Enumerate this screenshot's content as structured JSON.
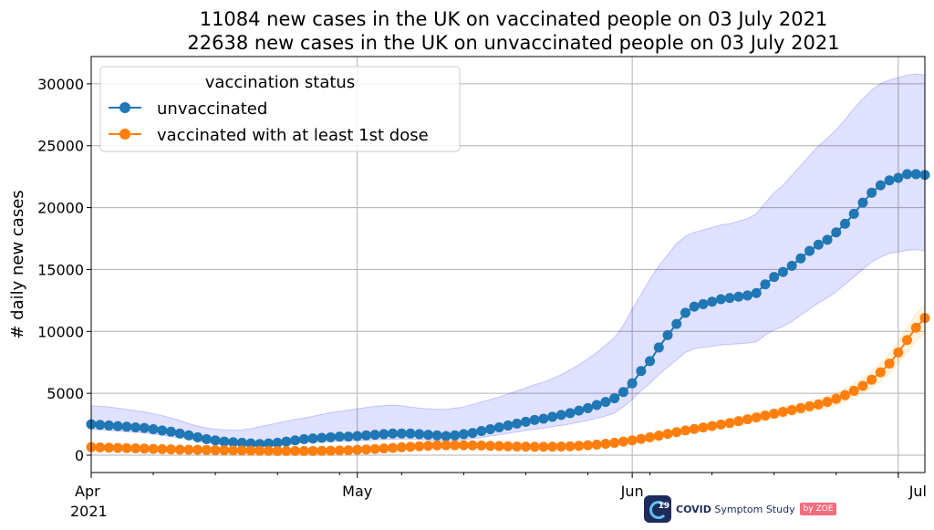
{
  "chart_data": {
    "type": "line",
    "title": "11084 new cases in the UK on vaccinated people on 03 July 2021",
    "subtitle": "22638 new cases in the UK on unvaccinated people on 03 July 2021",
    "xlabel": "",
    "ylabel": "# daily new cases",
    "x_start": "2021-04-01",
    "x_end": "2021-07-03",
    "xlim": [
      "2021-04-01",
      "2021-07-04"
    ],
    "ylim": [
      -1400,
      32200
    ],
    "yticks": [
      0,
      5000,
      10000,
      15000,
      20000,
      25000,
      30000
    ],
    "xticks": [
      {
        "date": "2021-04-01",
        "label": "Apr",
        "sublabel": "2021"
      },
      {
        "date": "2021-05-01",
        "label": "May",
        "sublabel": ""
      },
      {
        "date": "2021-06-01",
        "label": "Jun",
        "sublabel": ""
      },
      {
        "date": "2021-07-01",
        "label": "Jul",
        "sublabel": ""
      }
    ],
    "grid": true,
    "legend": {
      "title": "vaccination status",
      "position": "upper-left"
    },
    "series": [
      {
        "name": "unvaccinated",
        "color": "#1f77b4",
        "band_color": "#0000ff",
        "values": [
          2500,
          2450,
          2400,
          2350,
          2300,
          2250,
          2200,
          2100,
          2000,
          1900,
          1750,
          1600,
          1450,
          1300,
          1200,
          1100,
          1050,
          1000,
          950,
          900,
          950,
          1000,
          1100,
          1200,
          1300,
          1350,
          1400,
          1450,
          1500,
          1500,
          1550,
          1600,
          1650,
          1700,
          1750,
          1750,
          1750,
          1700,
          1650,
          1600,
          1550,
          1600,
          1700,
          1800,
          1950,
          2100,
          2250,
          2400,
          2550,
          2700,
          2850,
          2950,
          3100,
          3250,
          3400,
          3600,
          3800,
          4050,
          4300,
          4600,
          5100,
          5800,
          6800,
          7600,
          8700,
          9700,
          10600,
          11500,
          12000,
          12200,
          12400,
          12600,
          12700,
          12800,
          12900,
          13100,
          13800,
          14400,
          14800,
          15300,
          15900,
          16500,
          17000,
          17400,
          18000,
          18700,
          19500,
          20400,
          21200,
          21800,
          22200,
          22400,
          22700,
          22700,
          22638
        ],
        "lower": [
          2100,
          2050,
          2000,
          1950,
          1900,
          1850,
          1800,
          1700,
          1600,
          1500,
          1400,
          1300,
          1150,
          1000,
          900,
          820,
          780,
          740,
          700,
          660,
          700,
          760,
          840,
          930,
          1000,
          1050,
          1080,
          1100,
          1130,
          1150,
          1180,
          1200,
          1230,
          1260,
          1290,
          1300,
          1300,
          1260,
          1220,
          1180,
          1150,
          1180,
          1250,
          1330,
          1430,
          1550,
          1660,
          1770,
          1880,
          1990,
          2100,
          2180,
          2290,
          2400,
          2520,
          2660,
          2800,
          2980,
          3170,
          3400,
          3900,
          4500,
          5200,
          5800,
          6500,
          7100,
          7700,
          8300,
          8600,
          8700,
          8800,
          8900,
          8950,
          9000,
          9050,
          9150,
          9700,
          10100,
          10400,
          10800,
          11300,
          11800,
          12300,
          12700,
          13200,
          13800,
          14400,
          15000,
          15600,
          16000,
          16300,
          16400,
          16550,
          16600,
          16500
        ],
        "upper": [
          4000,
          3950,
          3900,
          3800,
          3700,
          3600,
          3500,
          3350,
          3200,
          3000,
          2800,
          2550,
          2350,
          2200,
          2100,
          2050,
          2020,
          2050,
          2150,
          2300,
          2450,
          2600,
          2750,
          2900,
          3000,
          3150,
          3300,
          3450,
          3550,
          3650,
          3750,
          3850,
          3950,
          4000,
          4050,
          4000,
          3900,
          3800,
          3750,
          3700,
          3700,
          3800,
          3900,
          4100,
          4300,
          4500,
          4700,
          4950,
          5200,
          5450,
          5700,
          5900,
          6200,
          6500,
          6900,
          7300,
          7800,
          8300,
          8900,
          9500,
          10500,
          11800,
          13000,
          14200,
          15300,
          16200,
          17100,
          17700,
          18000,
          18200,
          18400,
          18600,
          18700,
          18900,
          19100,
          19500,
          20400,
          21200,
          21800,
          22600,
          23400,
          24200,
          25000,
          25600,
          26300,
          27100,
          28000,
          28800,
          29500,
          30000,
          30300,
          30500,
          30700,
          30800,
          30700
        ]
      },
      {
        "name": "vaccinated with at least 1st dose",
        "color": "#ff7f0e",
        "band_color": "#ffa500",
        "values": [
          650,
          630,
          610,
          590,
          570,
          550,
          530,
          510,
          490,
          470,
          450,
          440,
          430,
          420,
          410,
          400,
          390,
          380,
          370,
          360,
          350,
          345,
          340,
          340,
          340,
          345,
          350,
          360,
          380,
          400,
          430,
          460,
          500,
          540,
          590,
          640,
          680,
          720,
          760,
          790,
          800,
          800,
          800,
          790,
          780,
          760,
          740,
          720,
          700,
          690,
          680,
          680,
          690,
          700,
          720,
          760,
          800,
          860,
          920,
          1000,
          1100,
          1200,
          1320,
          1450,
          1580,
          1720,
          1860,
          2000,
          2120,
          2240,
          2360,
          2480,
          2600,
          2750,
          2900,
          3050,
          3200,
          3350,
          3500,
          3650,
          3800,
          3950,
          4100,
          4300,
          4550,
          4850,
          5200,
          5600,
          6100,
          6700,
          7400,
          8300,
          9300,
          10300,
          11084
        ],
        "lower": [
          520,
          505,
          490,
          470,
          455,
          440,
          425,
          410,
          395,
          380,
          365,
          355,
          345,
          335,
          325,
          315,
          305,
          295,
          285,
          275,
          265,
          260,
          255,
          255,
          255,
          260,
          265,
          275,
          295,
          315,
          340,
          365,
          400,
          435,
          475,
          515,
          550,
          585,
          620,
          645,
          655,
          655,
          655,
          645,
          635,
          620,
          605,
          590,
          575,
          565,
          555,
          555,
          565,
          575,
          590,
          625,
          660,
          710,
          760,
          830,
          920,
          1010,
          1120,
          1240,
          1360,
          1490,
          1610,
          1740,
          1840,
          1950,
          2060,
          2170,
          2280,
          2420,
          2550,
          2690,
          2830,
          2970,
          3100,
          3240,
          3380,
          3510,
          3650,
          3830,
          4050,
          4320,
          4640,
          5000,
          5450,
          5980,
          6600,
          7400,
          8300,
          9200,
          9900
        ],
        "upper": [
          780,
          755,
          730,
          710,
          685,
          660,
          635,
          610,
          585,
          560,
          535,
          525,
          515,
          505,
          495,
          485,
          475,
          465,
          455,
          445,
          435,
          430,
          425,
          425,
          425,
          430,
          435,
          445,
          465,
          485,
          520,
          555,
          600,
          645,
          705,
          765,
          810,
          855,
          900,
          935,
          945,
          945,
          945,
          935,
          925,
          900,
          875,
          850,
          825,
          815,
          805,
          805,
          815,
          825,
          850,
          895,
          940,
          1010,
          1080,
          1170,
          1280,
          1390,
          1520,
          1660,
          1800,
          1950,
          2110,
          2260,
          2400,
          2530,
          2660,
          2790,
          2920,
          3080,
          3250,
          3410,
          3570,
          3730,
          3900,
          4060,
          4220,
          4390,
          4550,
          4770,
          5050,
          5380,
          5760,
          6200,
          6750,
          7420,
          8200,
          9200,
          10300,
          11400,
          12200
        ]
      }
    ]
  },
  "logo": {
    "mark_text": "19",
    "text_bold": "COVID",
    "text_rest": "Symptom Study",
    "badge": "by ZOE"
  }
}
